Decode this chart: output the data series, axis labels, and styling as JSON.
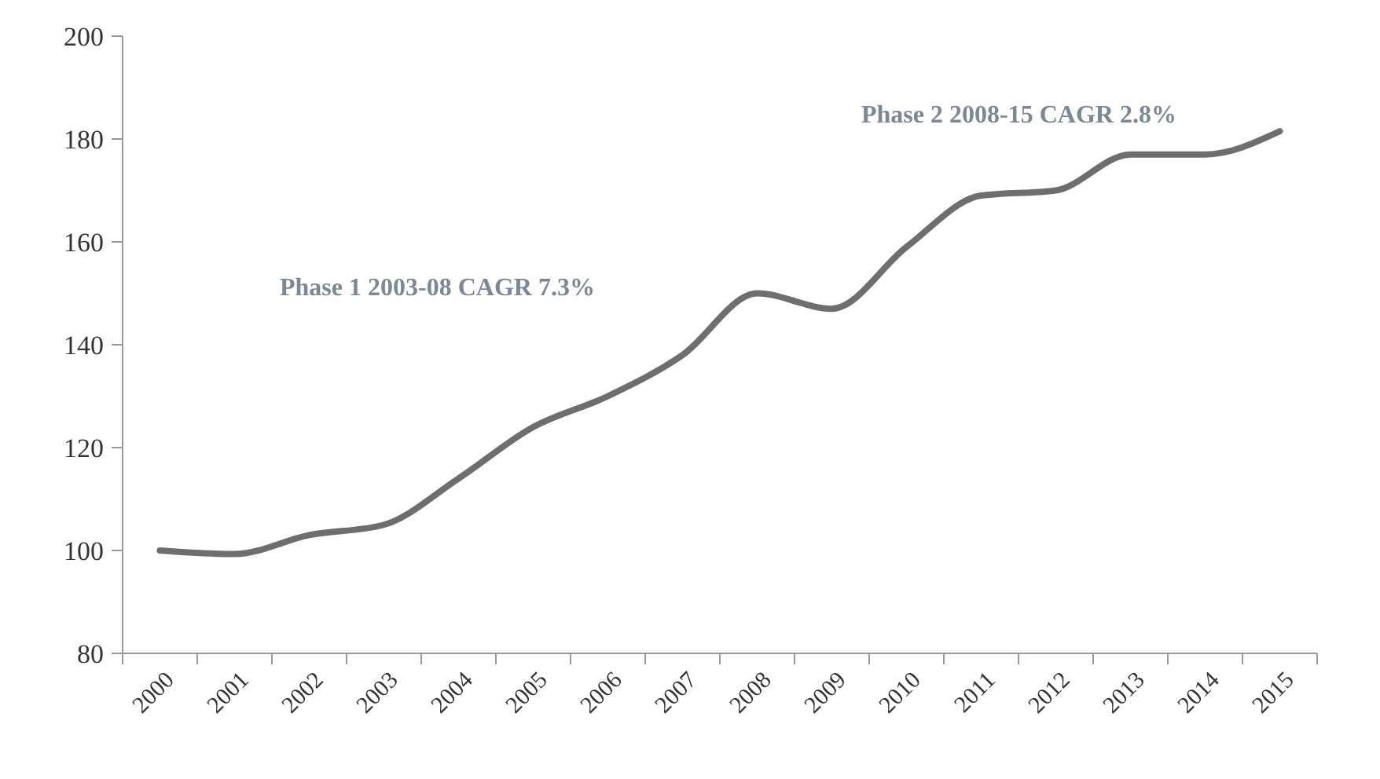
{
  "chart_data": {
    "type": "line",
    "categories": [
      "2000",
      "2001",
      "2002",
      "2003",
      "2004",
      "2005",
      "2006",
      "2007",
      "2008",
      "2009",
      "2010",
      "2011",
      "2012",
      "2013",
      "2014",
      "2015"
    ],
    "series": [
      {
        "color": "#6e6e6e",
        "values": [
          100,
          99.3,
          103,
          105,
          114,
          124,
          130,
          138,
          150,
          147,
          159,
          169,
          170,
          177,
          177,
          181.5
        ]
      }
    ],
    "ylim": [
      80,
      200
    ],
    "yticks": [
      80,
      100,
      120,
      140,
      160,
      180,
      200
    ],
    "grid": false,
    "marker": "none",
    "line_style": "solid",
    "annotations": [
      "Phase 1 2003-08 CAGR 7.3%",
      "Phase 2 2008-15 CAGR 2.8%"
    ]
  }
}
